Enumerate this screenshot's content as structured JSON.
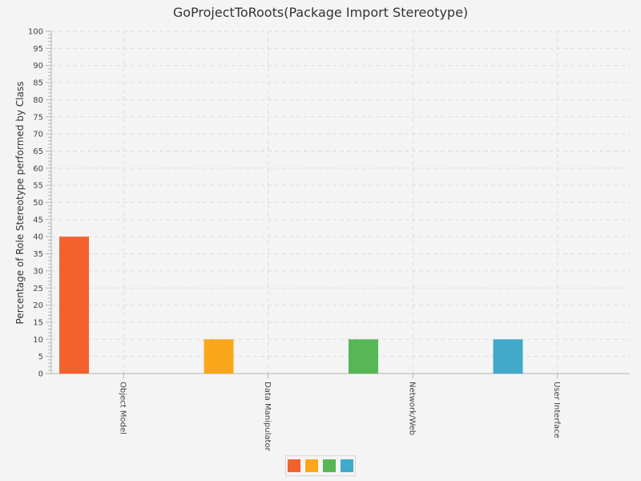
{
  "chart_data": {
    "type": "bar",
    "title": "GoProjectToRoots(Package Import Stereotype)",
    "xlabel": "",
    "ylabel": "Percentage of Role Stereotype performed by Class",
    "categories": [
      "Object Model",
      "Data Manipulator",
      "Network/Web",
      "User Interface"
    ],
    "values": [
      40,
      10,
      10,
      10
    ],
    "colors": [
      "#f3622d",
      "#fba71b",
      "#57b757",
      "#41a9c9"
    ],
    "ylim": [
      0,
      100
    ],
    "ytick_step": 5,
    "grid": true,
    "legend": "bottom"
  }
}
